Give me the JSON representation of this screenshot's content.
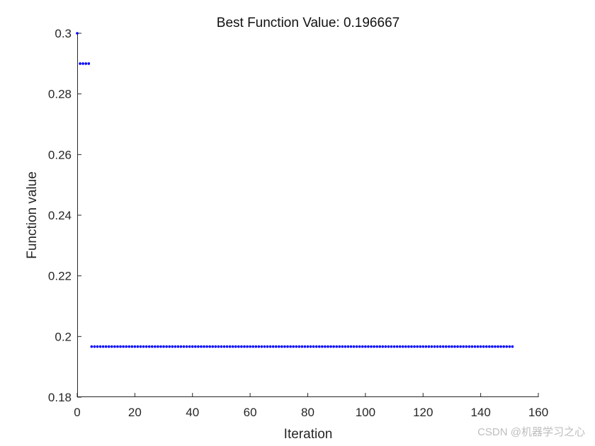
{
  "chart_data": {
    "type": "scatter",
    "title": "Best Function Value: 0.196667",
    "xlabel": "Iteration",
    "ylabel": "Function value",
    "xlim": [
      0,
      160
    ],
    "ylim": [
      0.18,
      0.3
    ],
    "xticks": [
      0,
      20,
      40,
      60,
      80,
      100,
      120,
      140,
      160
    ],
    "xtick_labels": [
      "0",
      "20",
      "40",
      "60",
      "80",
      "100",
      "120",
      "140",
      "160"
    ],
    "yticks": [
      0.18,
      0.2,
      0.22,
      0.24,
      0.26,
      0.28,
      0.3
    ],
    "ytick_labels": [
      "0.18",
      "0.2",
      "0.22",
      "0.24",
      "0.26",
      "0.28",
      "0.3"
    ],
    "grid": false,
    "marker_color": "#0000ff",
    "segments": [
      {
        "x_start": 0,
        "x_end": 0,
        "y": 0.3
      },
      {
        "x_start": 1,
        "x_end": 4,
        "y": 0.29
      },
      {
        "x_start": 5,
        "x_end": 151,
        "y": 0.196667
      }
    ]
  },
  "watermark": {
    "text": "CSDN @机器学习之心"
  }
}
